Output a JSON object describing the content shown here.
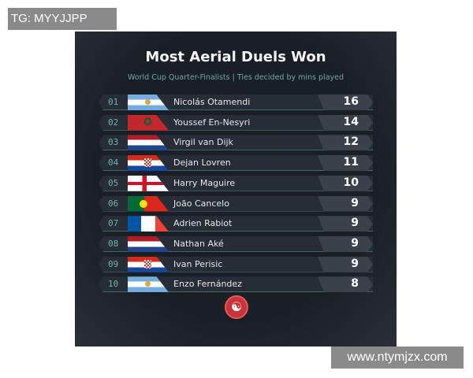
{
  "watermarks": {
    "top_left": "TG: MYYJJPP",
    "bottom_right": "www.ntymjzx.com"
  },
  "title": "Most Aerial Duels Won",
  "subtitle": "World Cup Quarter-Finalists | Ties decided by mins played",
  "rows": [
    {
      "rank": "01",
      "flag": "argentina",
      "name": "Nicolás Otamendi",
      "value": "16"
    },
    {
      "rank": "02",
      "flag": "morocco",
      "name": "Youssef En-Nesyri",
      "value": "14"
    },
    {
      "rank": "03",
      "flag": "netherlands",
      "name": "Virgil van Dijk",
      "value": "12"
    },
    {
      "rank": "04",
      "flag": "croatia",
      "name": "Dejan Lovren",
      "value": "11"
    },
    {
      "rank": "05",
      "flag": "england",
      "name": "Harry Maguire",
      "value": "10"
    },
    {
      "rank": "06",
      "flag": "portugal",
      "name": "João Cancelo",
      "value": "9"
    },
    {
      "rank": "07",
      "flag": "france",
      "name": "Adrien Rabiot",
      "value": "9"
    },
    {
      "rank": "08",
      "flag": "netherlands",
      "name": "Nathan Aké",
      "value": "9"
    },
    {
      "rank": "09",
      "flag": "croatia",
      "name": "Ivan Perisic",
      "value": "9"
    },
    {
      "rank": "10",
      "flag": "argentina",
      "name": "Enzo Fernández",
      "value": "8"
    }
  ],
  "logo_icon": "brand-logo-icon",
  "colors": {
    "background": "#1a1e25",
    "accent": "#6fa89e",
    "value_box": "#3a414b"
  }
}
